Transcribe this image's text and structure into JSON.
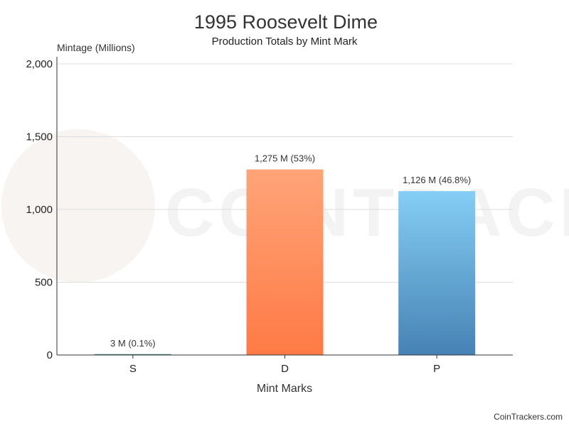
{
  "chart_data": {
    "type": "bar",
    "title": "1995 Roosevelt Dime",
    "subtitle": "Production Totals by Mint Mark",
    "xlabel": "Mint Marks",
    "ylabel": "Mintage (Millions)",
    "ylim": [
      0,
      2000
    ],
    "yticks": [
      0,
      500,
      1000,
      1500,
      2000
    ],
    "ytick_labels": [
      "0",
      "500",
      "1,000",
      "1,500",
      "2,000"
    ],
    "grid": true,
    "categories": [
      "S",
      "D",
      "P"
    ],
    "values": [
      3,
      1275,
      1126
    ],
    "data_labels": [
      "3 M (0.1%)",
      "1,275 M (53%)",
      "1,126 M (46.8%)"
    ],
    "colors": [
      {
        "top": "#3d8f8c",
        "bottom": "#2a6f6b"
      },
      {
        "top": "#ffa478",
        "bottom": "#ff7a45"
      },
      {
        "top": "#85cef5",
        "bottom": "#4682b4"
      }
    ]
  },
  "watermark": {
    "text": "COINTRACKERS"
  },
  "credit": "CoinTrackers.com"
}
